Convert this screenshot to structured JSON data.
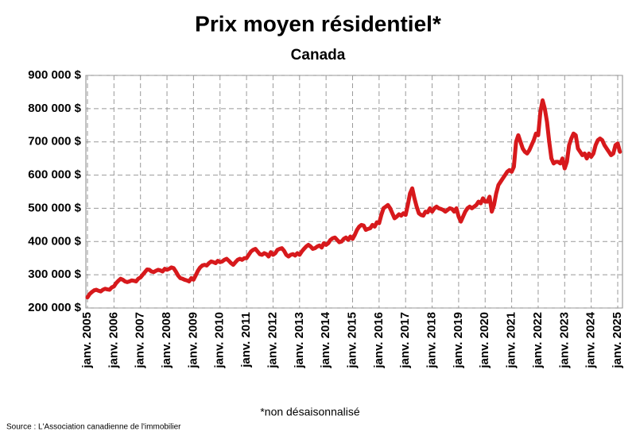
{
  "chart_data": {
    "type": "line",
    "title": "Prix moyen résidentiel*",
    "subtitle": "Canada",
    "note": "*non désaisonnalisé",
    "source": "Source : L'Association canadienne de l'immobilier",
    "grid": true,
    "categories": [
      "janv. 2005",
      null,
      null,
      null,
      null,
      null,
      null,
      null,
      null,
      null,
      null,
      null,
      "janv. 2006",
      null,
      null,
      null,
      null,
      null,
      null,
      null,
      null,
      null,
      null,
      null,
      "janv. 2007",
      null,
      null,
      null,
      null,
      null,
      null,
      null,
      null,
      null,
      null,
      null,
      "janv. 2008",
      null,
      null,
      null,
      null,
      null,
      null,
      null,
      null,
      null,
      null,
      null,
      "janv. 2009",
      null,
      null,
      null,
      null,
      null,
      null,
      null,
      null,
      null,
      null,
      null,
      "janv. 2010",
      null,
      null,
      null,
      null,
      null,
      null,
      null,
      null,
      null,
      null,
      null,
      "janv. 2011",
      null,
      null,
      null,
      null,
      null,
      null,
      null,
      null,
      null,
      null,
      null,
      "janv. 2012",
      null,
      null,
      null,
      null,
      null,
      null,
      null,
      null,
      null,
      null,
      null,
      "janv. 2013",
      null,
      null,
      null,
      null,
      null,
      null,
      null,
      null,
      null,
      null,
      null,
      "janv. 2014",
      null,
      null,
      null,
      null,
      null,
      null,
      null,
      null,
      null,
      null,
      null,
      "janv. 2015",
      null,
      null,
      null,
      null,
      null,
      null,
      null,
      null,
      null,
      null,
      null,
      "janv. 2016",
      null,
      null,
      null,
      null,
      null,
      null,
      null,
      null,
      null,
      null,
      null,
      "janv. 2017",
      null,
      null,
      null,
      null,
      null,
      null,
      null,
      null,
      null,
      null,
      null,
      "janv. 2018",
      null,
      null,
      null,
      null,
      null,
      null,
      null,
      null,
      null,
      null,
      null,
      "janv. 2019",
      null,
      null,
      null,
      null,
      null,
      null,
      null,
      null,
      null,
      null,
      null,
      "janv. 2020",
      null,
      null,
      null,
      null,
      null,
      null,
      null,
      null,
      null,
      null,
      null,
      "janv. 2021",
      null,
      null,
      null,
      null,
      null,
      null,
      null,
      null,
      null,
      null,
      null,
      "janv. 2022",
      null,
      null,
      null,
      null,
      null,
      null,
      null,
      null,
      null,
      null,
      null,
      "janv. 2023",
      null,
      null,
      null,
      null,
      null,
      null,
      null,
      null,
      null,
      null,
      null,
      "janv. 2024",
      null,
      null,
      null,
      null,
      null,
      null,
      null,
      null,
      null,
      null,
      null,
      "janv. 2025",
      null
    ],
    "series": [
      {
        "color": "#d7191c",
        "values": [
          232000,
          242000,
          248000,
          253000,
          255000,
          252000,
          250000,
          255000,
          258000,
          256000,
          255000,
          262000,
          265000,
          275000,
          282000,
          288000,
          285000,
          280000,
          278000,
          280000,
          283000,
          282000,
          280000,
          288000,
          292000,
          300000,
          308000,
          316000,
          315000,
          310000,
          308000,
          312000,
          315000,
          313000,
          310000,
          318000,
          315000,
          318000,
          322000,
          320000,
          310000,
          298000,
          290000,
          288000,
          285000,
          283000,
          280000,
          290000,
          285000,
          298000,
          312000,
          322000,
          328000,
          330000,
          328000,
          335000,
          340000,
          338000,
          335000,
          342000,
          338000,
          340000,
          345000,
          348000,
          342000,
          335000,
          330000,
          338000,
          345000,
          348000,
          345000,
          350000,
          350000,
          360000,
          370000,
          375000,
          378000,
          370000,
          362000,
          360000,
          365000,
          362000,
          355000,
          368000,
          360000,
          365000,
          375000,
          378000,
          380000,
          372000,
          360000,
          355000,
          360000,
          362000,
          358000,
          365000,
          360000,
          370000,
          378000,
          385000,
          390000,
          385000,
          378000,
          380000,
          385000,
          388000,
          382000,
          395000,
          390000,
          395000,
          405000,
          410000,
          412000,
          405000,
          398000,
          400000,
          408000,
          412000,
          405000,
          415000,
          408000,
          420000,
          435000,
          445000,
          450000,
          448000,
          435000,
          438000,
          440000,
          450000,
          445000,
          458000,
          455000,
          480000,
          500000,
          505000,
          510000,
          500000,
          485000,
          470000,
          475000,
          482000,
          478000,
          485000,
          480000,
          510000,
          545000,
          560000,
          530000,
          505000,
          485000,
          480000,
          478000,
          490000,
          488000,
          500000,
          490000,
          500000,
          505000,
          500000,
          498000,
          495000,
          490000,
          495000,
          500000,
          498000,
          490000,
          500000,
          475000,
          460000,
          475000,
          490000,
          500000,
          505000,
          500000,
          505000,
          510000,
          520000,
          515000,
          530000,
          520000,
          520000,
          535000,
          490000,
          510000,
          545000,
          570000,
          580000,
          590000,
          600000,
          610000,
          615000,
          610000,
          625000,
          700000,
          720000,
          700000,
          680000,
          670000,
          665000,
          675000,
          690000,
          705000,
          725000,
          720000,
          790000,
          825000,
          800000,
          760000,
          700000,
          650000,
          635000,
          640000,
          640000,
          635000,
          650000,
          620000,
          640000,
          690000,
          710000,
          725000,
          720000,
          680000,
          670000,
          660000,
          665000,
          650000,
          665000,
          655000,
          665000,
          690000,
          705000,
          710000,
          705000,
          690000,
          680000,
          670000,
          660000,
          665000,
          690000,
          695000,
          670000
        ]
      }
    ],
    "ylim": [
      200000,
      900000
    ],
    "yticks": [
      {
        "value": 200000,
        "label": "200 000 $"
      },
      {
        "value": 300000,
        "label": "300 000 $"
      },
      {
        "value": 400000,
        "label": "400 000 $"
      },
      {
        "value": 500000,
        "label": "500 000 $"
      },
      {
        "value": 600000,
        "label": "600 000 $"
      },
      {
        "value": 700000,
        "label": "700 000 $"
      },
      {
        "value": 800000,
        "label": "800 000 $"
      },
      {
        "value": 900000,
        "label": "900 000 $"
      }
    ]
  }
}
